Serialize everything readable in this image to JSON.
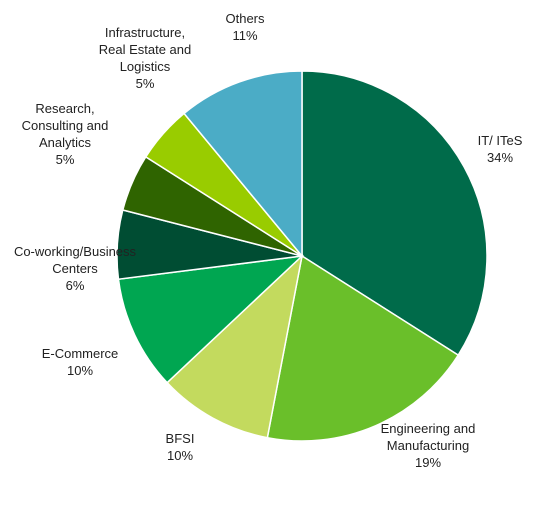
{
  "chart_data": {
    "type": "pie",
    "categories": [
      "IT/ ITeS",
      "Engineering and Manufacturing",
      "BFSI",
      "E-Commerce",
      "Co-working/Business Centers",
      "Research, Consulting and Analytics",
      "Infrastructure, Real Estate and Logistics",
      "Others"
    ],
    "values": [
      34,
      19,
      10,
      10,
      6,
      5,
      5,
      11
    ],
    "value_labels": [
      "34%",
      "19%",
      "10%",
      "10%",
      "6%",
      "5%",
      "5%",
      "11%"
    ],
    "colors": [
      "#006b4a",
      "#6abf2a",
      "#c3da5e",
      "#00a651",
      "#004d33",
      "#2f6400",
      "#99cc00",
      "#4bacc6"
    ]
  }
}
